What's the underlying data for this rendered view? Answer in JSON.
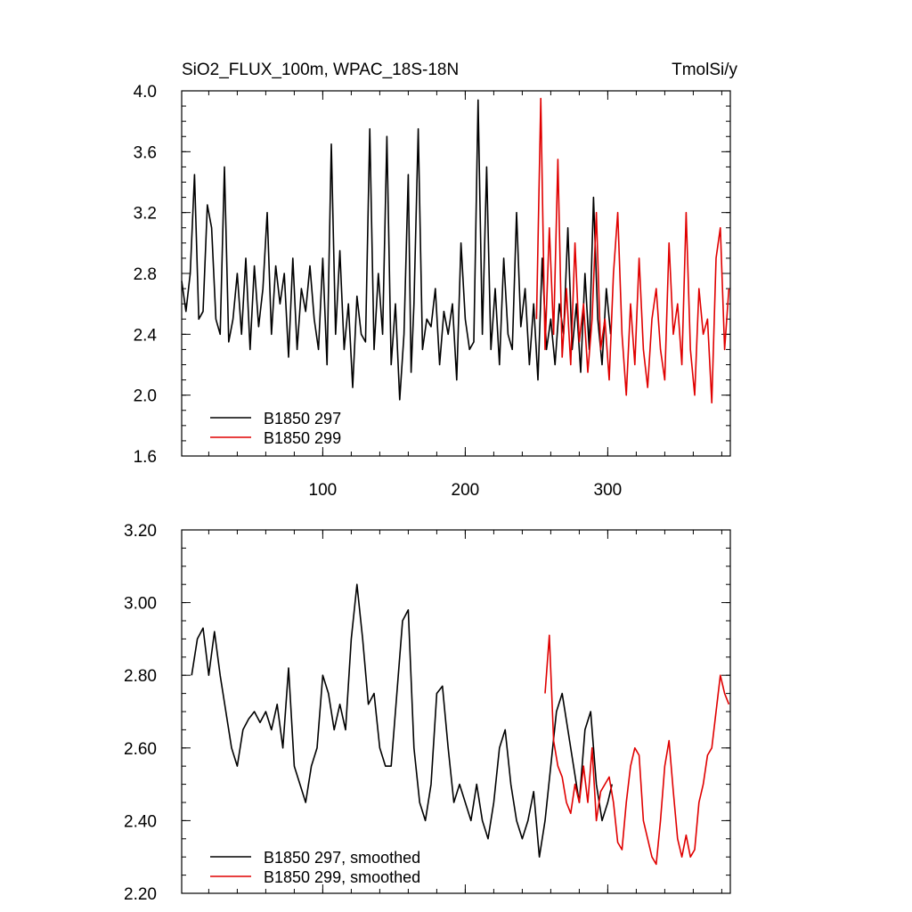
{
  "chart_data": [
    {
      "type": "line",
      "title": "SiO2_FLUX_100m, WPAC_18S-18N",
      "units": "TmolSi/y",
      "xlim": [
        1,
        386
      ],
      "ylim": [
        1.6,
        4.0
      ],
      "xticks": [
        100,
        200,
        300
      ],
      "xtick_labels": [
        "100",
        "200",
        "300"
      ],
      "yticks": [
        1.6,
        2.0,
        2.4,
        2.8,
        3.2,
        3.6,
        4.0
      ],
      "ytick_labels": [
        "1.6",
        "2.0",
        "2.4",
        "2.8",
        "3.2",
        "3.6",
        "4.0"
      ],
      "legend": "bottom-left",
      "series": [
        {
          "name": "B1850 297",
          "color": "#000000",
          "x": [
            1,
            4,
            7,
            10,
            13,
            16,
            19,
            22,
            25,
            28,
            31,
            34,
            37,
            40,
            43,
            46,
            49,
            52,
            55,
            58,
            61,
            64,
            67,
            70,
            73,
            76,
            79,
            82,
            85,
            88,
            91,
            94,
            97,
            100,
            103,
            106,
            109,
            112,
            115,
            118,
            121,
            124,
            127,
            130,
            133,
            136,
            139,
            142,
            145,
            148,
            151,
            154,
            157,
            160,
            162,
            164,
            167,
            170,
            173,
            176,
            179,
            182,
            185,
            188,
            191,
            194,
            197,
            200,
            203,
            206,
            209,
            212,
            215,
            218,
            221,
            224,
            227,
            230,
            233,
            236,
            239,
            242,
            245,
            248,
            251,
            254,
            257,
            260,
            263,
            266,
            269,
            272,
            275,
            278,
            281,
            284,
            287,
            290,
            293,
            296,
            299,
            302
          ],
          "y": [
            2.75,
            2.55,
            2.8,
            3.45,
            2.5,
            2.55,
            3.25,
            3.1,
            2.5,
            2.4,
            3.5,
            2.35,
            2.5,
            2.8,
            2.4,
            2.9,
            2.3,
            2.85,
            2.45,
            2.7,
            3.2,
            2.4,
            2.85,
            2.6,
            2.8,
            2.25,
            2.9,
            2.3,
            2.7,
            2.55,
            2.85,
            2.5,
            2.3,
            2.9,
            2.2,
            3.65,
            2.4,
            2.95,
            2.3,
            2.6,
            2.05,
            2.65,
            2.4,
            2.35,
            3.75,
            2.3,
            2.8,
            2.4,
            3.7,
            2.2,
            2.6,
            1.97,
            2.4,
            3.45,
            2.15,
            2.6,
            3.75,
            2.3,
            2.5,
            2.45,
            2.7,
            2.2,
            2.55,
            2.4,
            2.6,
            2.1,
            3.0,
            2.5,
            2.3,
            2.35,
            3.94,
            2.4,
            3.5,
            2.3,
            2.7,
            2.2,
            2.9,
            2.4,
            2.3,
            3.2,
            2.45,
            2.7,
            2.2,
            2.6,
            2.1,
            2.9,
            2.3,
            2.5,
            2.2,
            2.6,
            2.4,
            3.1,
            2.3,
            2.6,
            2.15,
            2.8,
            2.3,
            3.3,
            2.5,
            2.2,
            2.7,
            2.4
          ],
          "y_display_note": ""
        },
        {
          "name": "B1850 299",
          "color": "#e00000",
          "x": [
            250,
            253,
            256,
            259,
            262,
            265,
            268,
            271,
            274,
            277,
            280,
            283,
            286,
            289,
            292,
            295,
            298,
            301,
            304,
            307,
            310,
            313,
            316,
            319,
            322,
            325,
            328,
            331,
            334,
            337,
            340,
            343,
            346,
            349,
            352,
            355,
            358,
            361,
            364,
            367,
            370,
            373,
            376,
            379,
            382,
            385
          ],
          "y": [
            2.5,
            3.95,
            2.3,
            3.1,
            2.4,
            3.55,
            2.25,
            2.7,
            2.2,
            3.0,
            2.35,
            2.6,
            2.15,
            2.5,
            3.2,
            2.3,
            2.5,
            2.1,
            2.8,
            3.2,
            2.4,
            2.0,
            2.6,
            2.2,
            2.9,
            2.3,
            2.05,
            2.5,
            2.7,
            2.3,
            2.1,
            3.0,
            2.4,
            2.6,
            2.2,
            3.2,
            2.3,
            2.0,
            2.7,
            2.4,
            2.5,
            1.95,
            2.9,
            3.1,
            2.3,
            2.7
          ],
          "y_display_note": ""
        }
      ]
    },
    {
      "type": "line",
      "title": "",
      "xlim": [
        1,
        386
      ],
      "ylim": [
        2.2,
        3.2
      ],
      "xticks": [
        100,
        200,
        300
      ],
      "yticks": [
        2.2,
        2.4,
        2.6,
        2.8,
        3.0,
        3.2
      ],
      "ytick_labels": [
        "2.20",
        "2.40",
        "2.60",
        "2.80",
        "3.00",
        "3.20"
      ],
      "legend": "bottom-left",
      "series": [
        {
          "name": "B1850 297, smoothed",
          "color": "#000000",
          "x": [
            8,
            12,
            16,
            20,
            24,
            28,
            32,
            36,
            40,
            44,
            48,
            52,
            56,
            60,
            64,
            68,
            72,
            76,
            80,
            84,
            88,
            92,
            96,
            100,
            104,
            108,
            112,
            116,
            120,
            124,
            128,
            132,
            136,
            140,
            144,
            148,
            152,
            156,
            160,
            164,
            168,
            172,
            176,
            180,
            184,
            188,
            192,
            196,
            200,
            204,
            208,
            212,
            216,
            220,
            224,
            228,
            232,
            236,
            240,
            244,
            248,
            252,
            256,
            260,
            264,
            268,
            272,
            276,
            280,
            284,
            288,
            292,
            296,
            300,
            303
          ],
          "y": [
            2.8,
            2.9,
            2.93,
            2.8,
            2.92,
            2.8,
            2.7,
            2.6,
            2.55,
            2.65,
            2.68,
            2.7,
            2.67,
            2.7,
            2.65,
            2.72,
            2.6,
            2.82,
            2.55,
            2.5,
            2.45,
            2.55,
            2.6,
            2.8,
            2.75,
            2.65,
            2.72,
            2.65,
            2.9,
            3.05,
            2.9,
            2.72,
            2.75,
            2.6,
            2.55,
            2.55,
            2.75,
            2.95,
            2.98,
            2.6,
            2.45,
            2.4,
            2.5,
            2.75,
            2.77,
            2.6,
            2.45,
            2.5,
            2.45,
            2.4,
            2.5,
            2.4,
            2.35,
            2.45,
            2.6,
            2.65,
            2.5,
            2.4,
            2.35,
            2.4,
            2.48,
            2.3,
            2.4,
            2.55,
            2.7,
            2.75,
            2.65,
            2.55,
            2.45,
            2.65,
            2.7,
            2.5,
            2.4,
            2.45,
            2.5
          ],
          "y_display_note": ""
        },
        {
          "name": "B1850 299, smoothed",
          "color": "#e00000",
          "x": [
            256,
            259,
            262,
            265,
            268,
            271,
            274,
            277,
            280,
            283,
            286,
            289,
            292,
            295,
            298,
            301,
            304,
            307,
            310,
            313,
            316,
            319,
            322,
            325,
            328,
            331,
            334,
            337,
            340,
            343,
            346,
            349,
            352,
            355,
            358,
            361,
            364,
            367,
            370,
            373,
            376,
            379,
            382,
            385
          ],
          "y": [
            2.75,
            2.91,
            2.62,
            2.55,
            2.52,
            2.45,
            2.42,
            2.5,
            2.45,
            2.55,
            2.45,
            2.6,
            2.4,
            2.48,
            2.5,
            2.52,
            2.45,
            2.34,
            2.32,
            2.45,
            2.55,
            2.6,
            2.58,
            2.4,
            2.35,
            2.3,
            2.28,
            2.4,
            2.55,
            2.62,
            2.48,
            2.35,
            2.3,
            2.36,
            2.3,
            2.32,
            2.45,
            2.5,
            2.58,
            2.6,
            2.7,
            2.8,
            2.75,
            2.72
          ],
          "y_display_note": ""
        }
      ]
    }
  ]
}
